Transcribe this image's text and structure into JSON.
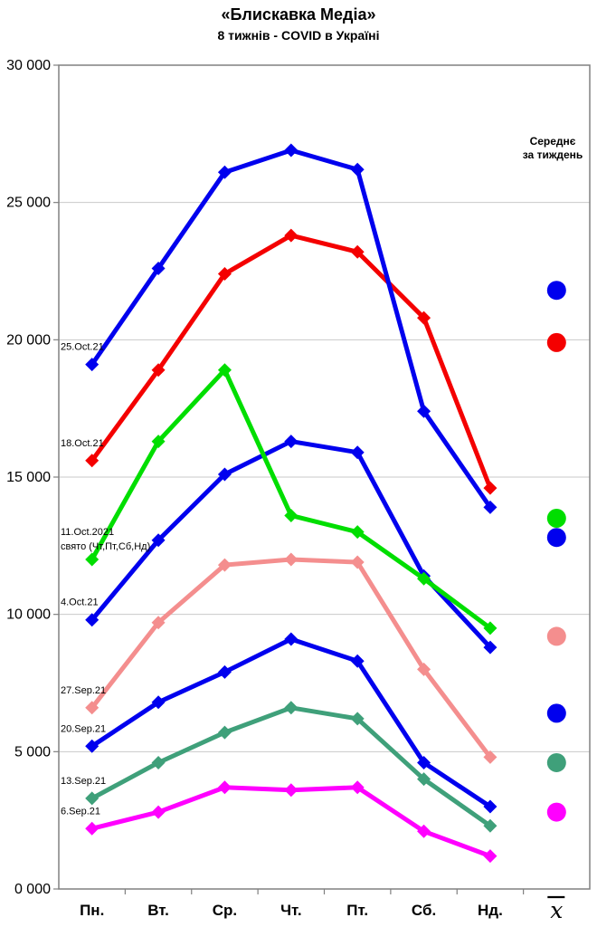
{
  "header": {
    "title": "«Блискавка Медіа»",
    "subtitle": "8 тижнів - COVID в Україні"
  },
  "legend": {
    "line1": "Середнє",
    "line2": "за тиждень"
  },
  "chart_data": {
    "type": "line",
    "title": "«Блискавка Медіа»",
    "subtitle": "8 тижнів - COVID в Україні",
    "categories": [
      "Пн.",
      "Вт.",
      "Ср.",
      "Чт.",
      "Пт.",
      "Сб.",
      "Нд."
    ],
    "mean_column_symbol": "x̄",
    "ylim": [
      0,
      30000
    ],
    "ytick_interval": 5000,
    "ytick_labels": [
      "0 000",
      "5 000",
      "10 000",
      "15 000",
      "20 000",
      "25 000",
      "30 000"
    ],
    "grid": "horizontal",
    "legend_title": "Середнє за тиждень",
    "legend_position": "right",
    "series": [
      {
        "name": "25.Oct.21",
        "color": "#0000EE",
        "values": [
          19100,
          22600,
          26100,
          26900,
          26200,
          17400,
          13900
        ],
        "week_avg": 21800
      },
      {
        "name": "18.Oct.21",
        "color": "#F40000",
        "values": [
          15600,
          18900,
          22400,
          23800,
          23200,
          20800,
          14600
        ],
        "week_avg": 19900
      },
      {
        "name": "11.Oct.2021",
        "annotation": "свято (Чт,Пт,Сб,Нд)",
        "color": "#00DE00",
        "values": [
          12000,
          16300,
          18900,
          13600,
          13000,
          11300,
          9500
        ],
        "week_avg": 13500
      },
      {
        "name": "4.Oct.21",
        "color": "#0000EE",
        "values": [
          9800,
          12700,
          15100,
          16300,
          15900,
          11400,
          8800
        ],
        "week_avg": 12800
      },
      {
        "name": "27.Sep.21",
        "color": "#F48E8E",
        "values": [
          6600,
          9700,
          11800,
          12000,
          11900,
          8000,
          4800
        ],
        "week_avg": 9200
      },
      {
        "name": "20.Sep.21",
        "color": "#0000EE",
        "values": [
          5200,
          6800,
          7900,
          9100,
          8300,
          4600,
          3000
        ],
        "week_avg": 6400
      },
      {
        "name": "13.Sep.21",
        "color": "#3FA07A",
        "values": [
          3300,
          4600,
          5700,
          6600,
          6200,
          4000,
          2300
        ],
        "week_avg": 4600
      },
      {
        "name": "6.Sep.21",
        "color": "#FF00FF",
        "values": [
          2200,
          2800,
          3700,
          3600,
          3700,
          2100,
          1200
        ],
        "week_avg": 2800
      }
    ]
  }
}
